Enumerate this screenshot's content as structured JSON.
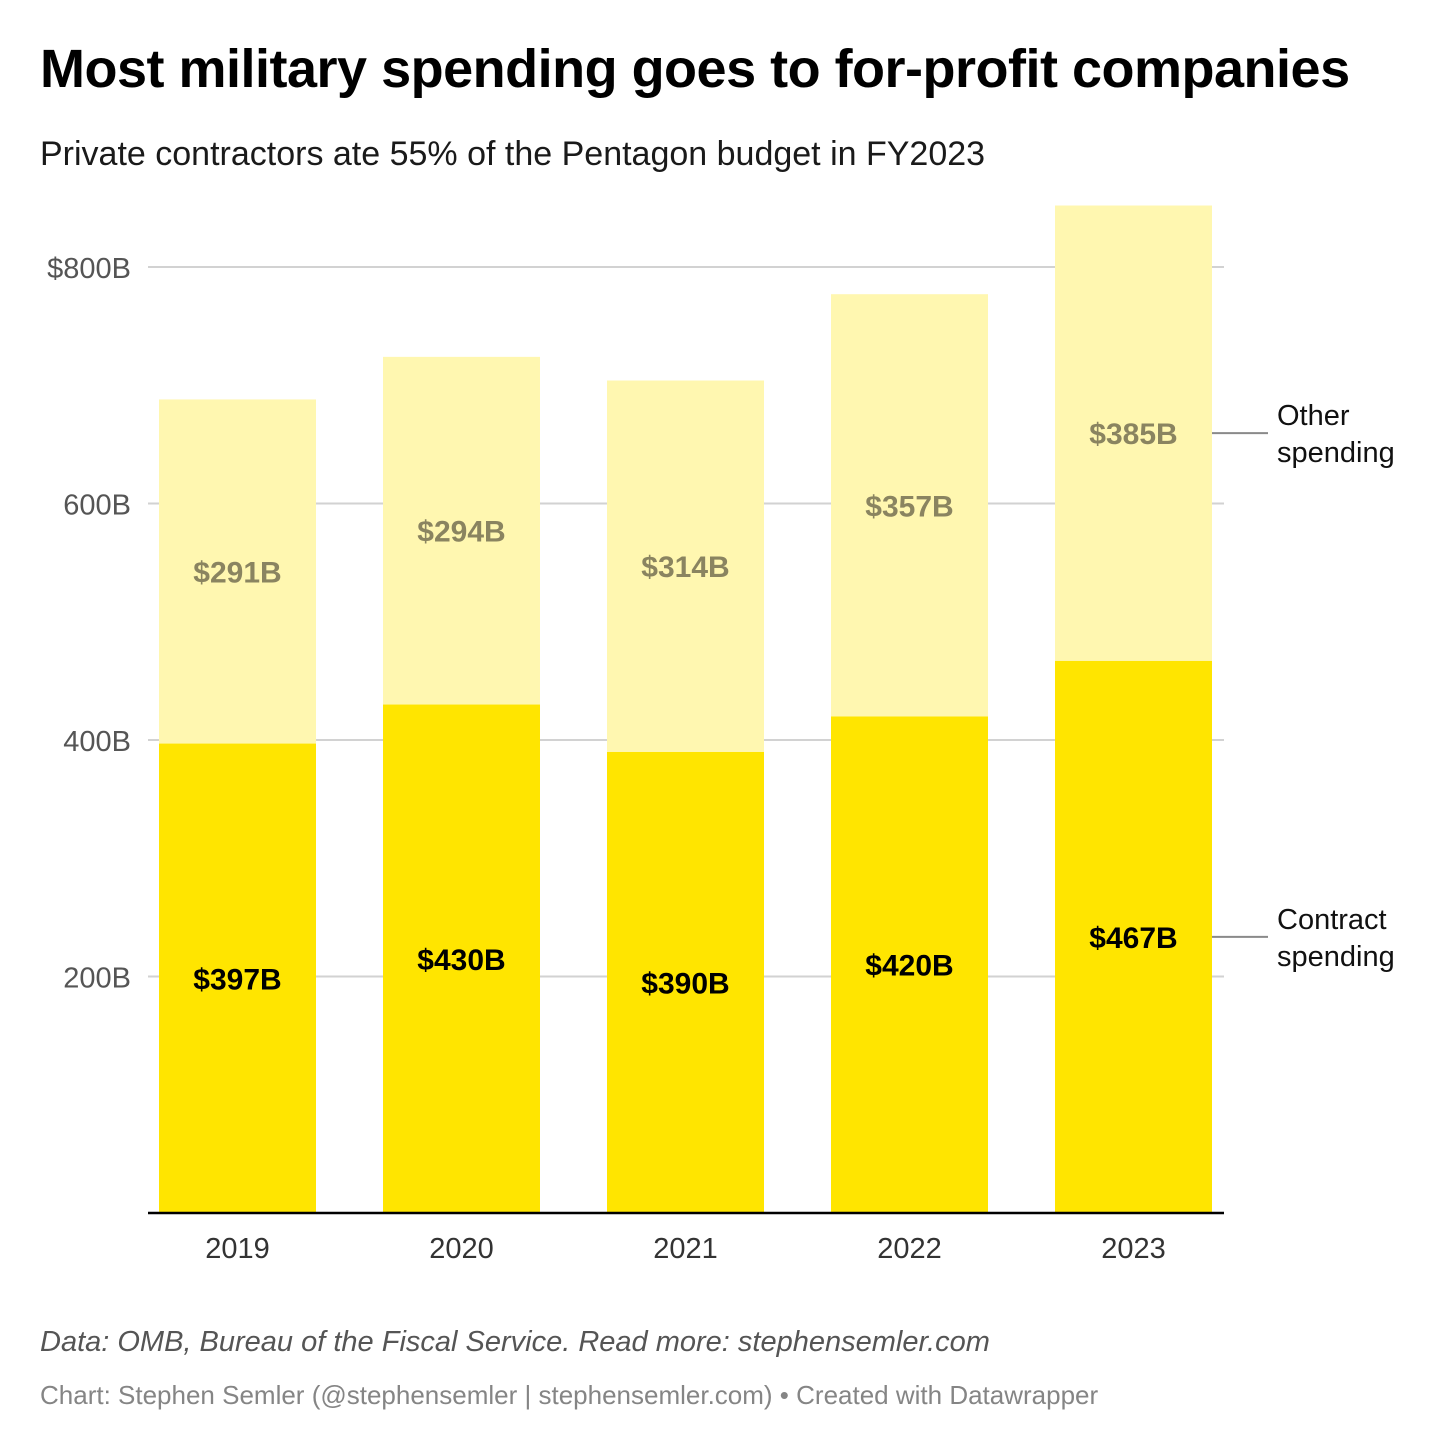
{
  "title": "Most military spending goes to for-profit companies",
  "subtitle": "Private contractors ate 55% of the Pentagon budget in FY2023",
  "footer": {
    "source": "Data: OMB, Bureau of the Fiscal Service. Read more: stephensemler.com",
    "credit": "Chart: Stephen Semler (@stephensemler | stephensemler.com) • Created with Datawrapper"
  },
  "colors": {
    "contract": "#ffe500",
    "other": "#fff7b0",
    "grid": "#d2d2d2",
    "axis": "#000000",
    "tick_label": "#555555",
    "contract_label": "#000000",
    "other_label": "#8a8460",
    "legend_line": "#8a8a8a"
  },
  "chart_data": {
    "type": "bar",
    "stacked": true,
    "categories": [
      "2019",
      "2020",
      "2021",
      "2022",
      "2023"
    ],
    "series": [
      {
        "name": "Contract spending",
        "values": [
          397,
          430,
          390,
          420,
          467
        ],
        "labels": [
          "$397B",
          "$430B",
          "$390B",
          "$420B",
          "$467B"
        ]
      },
      {
        "name": "Other spending",
        "values": [
          291,
          294,
          314,
          357,
          385
        ],
        "labels": [
          "$291B",
          "$294B",
          "$314B",
          "$357B",
          "$385B"
        ]
      }
    ],
    "legend_labels": [
      [
        "Contract",
        "spending"
      ],
      [
        "Other",
        "spending"
      ]
    ],
    "yticks": [
      200,
      400,
      600,
      800
    ],
    "ytick_labels": [
      "200B",
      "400B",
      "600B",
      "$800B"
    ],
    "ylim": [
      0,
      853
    ],
    "grid": true,
    "legend_position": "right, inline",
    "xlabel": "",
    "ylabel": ""
  }
}
